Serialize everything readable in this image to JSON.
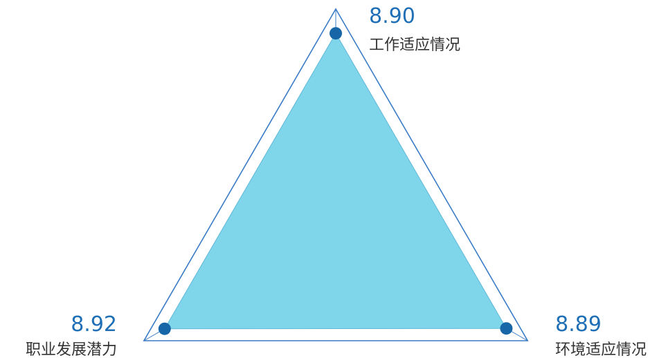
{
  "chart_data": {
    "type": "radar",
    "title": "",
    "categories": [
      "工作适应情况",
      "环境适应情况",
      "职业发展潜力"
    ],
    "series": [
      {
        "values": [
          8.9,
          8.89,
          8.92
        ]
      }
    ],
    "value_labels": [
      "8.90",
      "8.89",
      "8.92"
    ],
    "rlim": [
      0,
      10
    ],
    "grid_levels": 3,
    "colors": {
      "area": "#7fd5ea",
      "point": "#1766a8",
      "grid": "#3a7cc6",
      "value_text": "#1f6fb6",
      "axis_text": "#333333"
    }
  }
}
